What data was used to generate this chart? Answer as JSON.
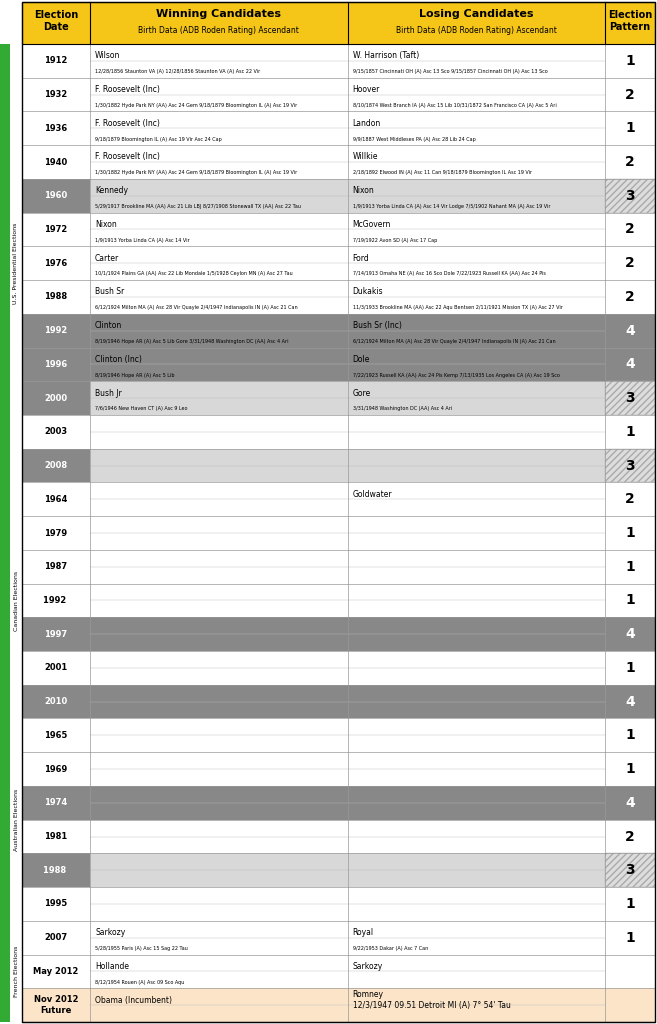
{
  "header_bg": "#f5c518",
  "rows": [
    {
      "year": "1912",
      "winner": "Wilson",
      "winner_detail": "12/28/1856 Staunton VA (A) 12/28/1856 Staunton VA (A) Asc 22 Vir",
      "loser": "W. Harrison (Taft)",
      "loser_detail": "9/15/1857 Cincinnati OH (A) Asc 13 Sco 9/15/1857 Cincinnati OH (A) Asc 13 Sco",
      "pattern": "1",
      "row_bg": "#ffffff",
      "year_bg": "#ffffff",
      "pat_bg": "white"
    },
    {
      "year": "1932",
      "winner": "F. Roosevelt (Inc)",
      "winner_detail": "1/30/1882 Hyde Park NY (AA) Asc 24 Gem 9/18/1879 Bloomington IL (A) Asc 19 Vir",
      "loser": "Hoover",
      "loser_detail": "8/10/1874 West Branch IA (A) Asc 15 Lib 10/31/1872 San Francisco CA (A) Asc 5 Ari",
      "pattern": "2",
      "row_bg": "#ffffff",
      "year_bg": "#ffffff",
      "pat_bg": "white"
    },
    {
      "year": "1936",
      "winner": "F. Roosevelt (Inc)",
      "winner_detail": "9/18/1879 Bloomington IL (A) Asc 19 Vir Asc 24 Cap",
      "loser": "Landon",
      "loser_detail": "9/9/1887 West Middlesex PA (A) Asc 28 Lib 24 Cap",
      "pattern": "1",
      "row_bg": "#ffffff",
      "year_bg": "#ffffff",
      "pat_bg": "white"
    },
    {
      "year": "1940",
      "winner": "F. Roosevelt (Inc)",
      "winner_detail": "1/30/1882 Hyde Park NY (AA) Asc 24 Gem 9/18/1879 Bloomington IL (A) Asc 19 Vir",
      "loser": "Willkie",
      "loser_detail": "2/18/1892 Elwood IN (A) Asc 11 Can 9/18/1879 Bloomington IL Asc 19 Vir",
      "pattern": "2",
      "row_bg": "#ffffff",
      "year_bg": "#ffffff",
      "pat_bg": "white"
    },
    {
      "year": "1960",
      "winner": "Kennedy",
      "winner_detail": "5/29/1917 Brookline MA (AA) Asc 21 Lib LBJ 8/27/1908 Stonewall TX (AA) Asc 22 Tau",
      "loser": "Nixon",
      "loser_detail": "1/9/1913 Yorba Linda CA (A) Asc 14 Vir Lodge 7/5/1902 Nahant MA (A) Asc 19 Vir",
      "pattern": "3",
      "row_bg": "#d8d8d8",
      "year_bg": "#888888",
      "pat_bg": "hatch"
    },
    {
      "year": "1972",
      "winner": "Nixon",
      "winner_detail": "1/9/1913 Yorba Linda CA (A) Asc 14 Vir",
      "loser": "McGovern",
      "loser_detail": "7/19/1922 Avon SD (A) Asc 17 Cap",
      "pattern": "2",
      "row_bg": "#ffffff",
      "year_bg": "#ffffff",
      "pat_bg": "white"
    },
    {
      "year": "1976",
      "winner": "Carter",
      "winner_detail": "10/1/1924 Plains GA (AA) Asc 22 Lib Mondale 1/5/1928 Ceylon MN (A) Asc 27 Tau",
      "loser": "Ford",
      "loser_detail": "7/14/1913 Omaha NE (A) Asc 16 Sco Dole 7/22/1923 Russell KA (AA) Asc 24 Pis",
      "pattern": "2",
      "row_bg": "#ffffff",
      "year_bg": "#ffffff",
      "pat_bg": "white"
    },
    {
      "year": "1988",
      "winner": "Bush Sr",
      "winner_detail": "6/12/1924 Milton MA (A) Asc 28 Vir Quayle 2/4/1947 Indianapolis IN (A) Asc 21 Can",
      "loser": "Dukakis",
      "loser_detail": "11/3/1933 Brookline MA (AA) Asc 22 Aqu Bentsen 2/11/1921 Mission TX (A) Asc 27 Vir",
      "pattern": "2",
      "row_bg": "#ffffff",
      "year_bg": "#ffffff",
      "pat_bg": "white"
    },
    {
      "year": "1992",
      "winner": "Clinton",
      "winner_detail": "8/19/1946 Hope AR (A) Asc 5 Lib Gore 3/31/1948 Washington DC (AA) Asc 4 Ari",
      "loser": "Bush Sr (Inc)",
      "loser_detail": "6/12/1924 Milton MA (A) Asc 28 Vir Quayle 2/4/1947 Indianapolis IN (A) Asc 21 Can",
      "pattern": "4",
      "row_bg": "#888888",
      "year_bg": "#888888",
      "pat_bg": "dark"
    },
    {
      "year": "1996",
      "winner": "Clinton (Inc)",
      "winner_detail": "8/19/1946 Hope AR (A) Asc 5 Lib",
      "loser": "Dole",
      "loser_detail": "7/22/1923 Russell KA (AA) Asc 24 Pis Kemp 7/13/1935 Los Angeles CA (A) Asc 19 Sco",
      "pattern": "4",
      "row_bg": "#888888",
      "year_bg": "#888888",
      "pat_bg": "dark"
    },
    {
      "year": "2000",
      "winner": "Bush Jr",
      "winner_detail": "7/6/1946 New Haven CT (A) Asc 9 Leo",
      "loser": "Gore",
      "loser_detail": "3/31/1948 Washington DC (AA) Asc 4 Ari",
      "pattern": "3",
      "row_bg": "#d8d8d8",
      "year_bg": "#888888",
      "pat_bg": "hatch"
    },
    {
      "year": "2003",
      "winner": "",
      "winner_detail": "",
      "loser": "",
      "loser_detail": "",
      "pattern": "1",
      "row_bg": "#ffffff",
      "year_bg": "#ffffff",
      "pat_bg": "white"
    },
    {
      "year": "2008",
      "winner": "",
      "winner_detail": "",
      "loser": "",
      "loser_detail": "",
      "pattern": "3",
      "row_bg": "#d8d8d8",
      "year_bg": "#888888",
      "pat_bg": "hatch"
    },
    {
      "year": "1964",
      "winner": "",
      "winner_detail": "",
      "loser": "Goldwater",
      "loser_detail": "",
      "pattern": "2",
      "row_bg": "#ffffff",
      "year_bg": "#ffffff",
      "pat_bg": "white"
    },
    {
      "year": "1979",
      "winner": "",
      "winner_detail": "",
      "loser": "",
      "loser_detail": "",
      "pattern": "1",
      "row_bg": "#ffffff",
      "year_bg": "#ffffff",
      "pat_bg": "white"
    },
    {
      "year": "1987",
      "winner": "",
      "winner_detail": "",
      "loser": "",
      "loser_detail": "",
      "pattern": "1",
      "row_bg": "#ffffff",
      "year_bg": "#ffffff",
      "pat_bg": "white"
    },
    {
      "year": "1992 ",
      "winner": "",
      "winner_detail": "",
      "loser": "",
      "loser_detail": "",
      "pattern": "1",
      "row_bg": "#ffffff",
      "year_bg": "#ffffff",
      "pat_bg": "white"
    },
    {
      "year": "1997",
      "winner": "",
      "winner_detail": "",
      "loser": "",
      "loser_detail": "",
      "pattern": "4",
      "row_bg": "#888888",
      "year_bg": "#888888",
      "pat_bg": "dark"
    },
    {
      "year": "2001",
      "winner": "",
      "winner_detail": "",
      "loser": "",
      "loser_detail": "",
      "pattern": "1",
      "row_bg": "#ffffff",
      "year_bg": "#ffffff",
      "pat_bg": "white"
    },
    {
      "year": "2010",
      "winner": "",
      "winner_detail": "",
      "loser": "",
      "loser_detail": "",
      "pattern": "4",
      "row_bg": "#888888",
      "year_bg": "#888888",
      "pat_bg": "dark"
    },
    {
      "year": "1965",
      "winner": "",
      "winner_detail": "",
      "loser": "",
      "loser_detail": "",
      "pattern": "1",
      "row_bg": "#ffffff",
      "year_bg": "#ffffff",
      "pat_bg": "white"
    },
    {
      "year": "1969",
      "winner": "",
      "winner_detail": "",
      "loser": "",
      "loser_detail": "",
      "pattern": "1",
      "row_bg": "#ffffff",
      "year_bg": "#ffffff",
      "pat_bg": "white"
    },
    {
      "year": "1974",
      "winner": "",
      "winner_detail": "",
      "loser": "",
      "loser_detail": "",
      "pattern": "4",
      "row_bg": "#888888",
      "year_bg": "#888888",
      "pat_bg": "dark"
    },
    {
      "year": "1981",
      "winner": "",
      "winner_detail": "",
      "loser": "",
      "loser_detail": "",
      "pattern": "2",
      "row_bg": "#ffffff",
      "year_bg": "#ffffff",
      "pat_bg": "white"
    },
    {
      "year": "1988 ",
      "winner": "",
      "winner_detail": "",
      "loser": "",
      "loser_detail": "",
      "pattern": "3",
      "row_bg": "#d8d8d8",
      "year_bg": "#888888",
      "pat_bg": "hatch"
    },
    {
      "year": "1995",
      "winner": "",
      "winner_detail": "",
      "loser": "",
      "loser_detail": "",
      "pattern": "1",
      "row_bg": "#ffffff",
      "year_bg": "#ffffff",
      "pat_bg": "white"
    },
    {
      "year": "2007",
      "winner": "Sarkozy",
      "winner_detail": "5/28/1955 Paris (A) Asc 15 Sag 22 Tau",
      "loser": "Royal",
      "loser_detail": "9/22/1953 Dakar (A) Asc 7 Can",
      "pattern": "1",
      "row_bg": "#ffffff",
      "year_bg": "#ffffff",
      "pat_bg": "white"
    },
    {
      "year": "May 2012",
      "winner": "Hollande",
      "winner_detail": "8/12/1954 Rouen (A) Asc 09 Sco Aqu",
      "loser": "Sarkozy",
      "loser_detail": "",
      "pattern": "",
      "row_bg": "#ffffff",
      "year_bg": "#ffffff",
      "pat_bg": "white"
    },
    {
      "year": "Nov 2012\nFuture",
      "winner": "Obama (Incumbent)",
      "winner_detail": "",
      "loser": "Romney\n12/3/1947 09.51 Detroit MI (A) 7° 54' Tau",
      "loser_detail": "",
      "pattern": "",
      "row_bg": "#fce4c8",
      "year_bg": "#fce4c8",
      "pat_bg": "peach"
    }
  ],
  "sections": [
    {
      "label": "U.S. Presidential Elections",
      "start": 0,
      "end": 13
    },
    {
      "label": "Canadian Elections",
      "start": 13,
      "end": 20
    },
    {
      "label": "Australian Elections",
      "start": 20,
      "end": 26
    },
    {
      "label": "French Elections",
      "start": 26,
      "end": 29
    }
  ]
}
